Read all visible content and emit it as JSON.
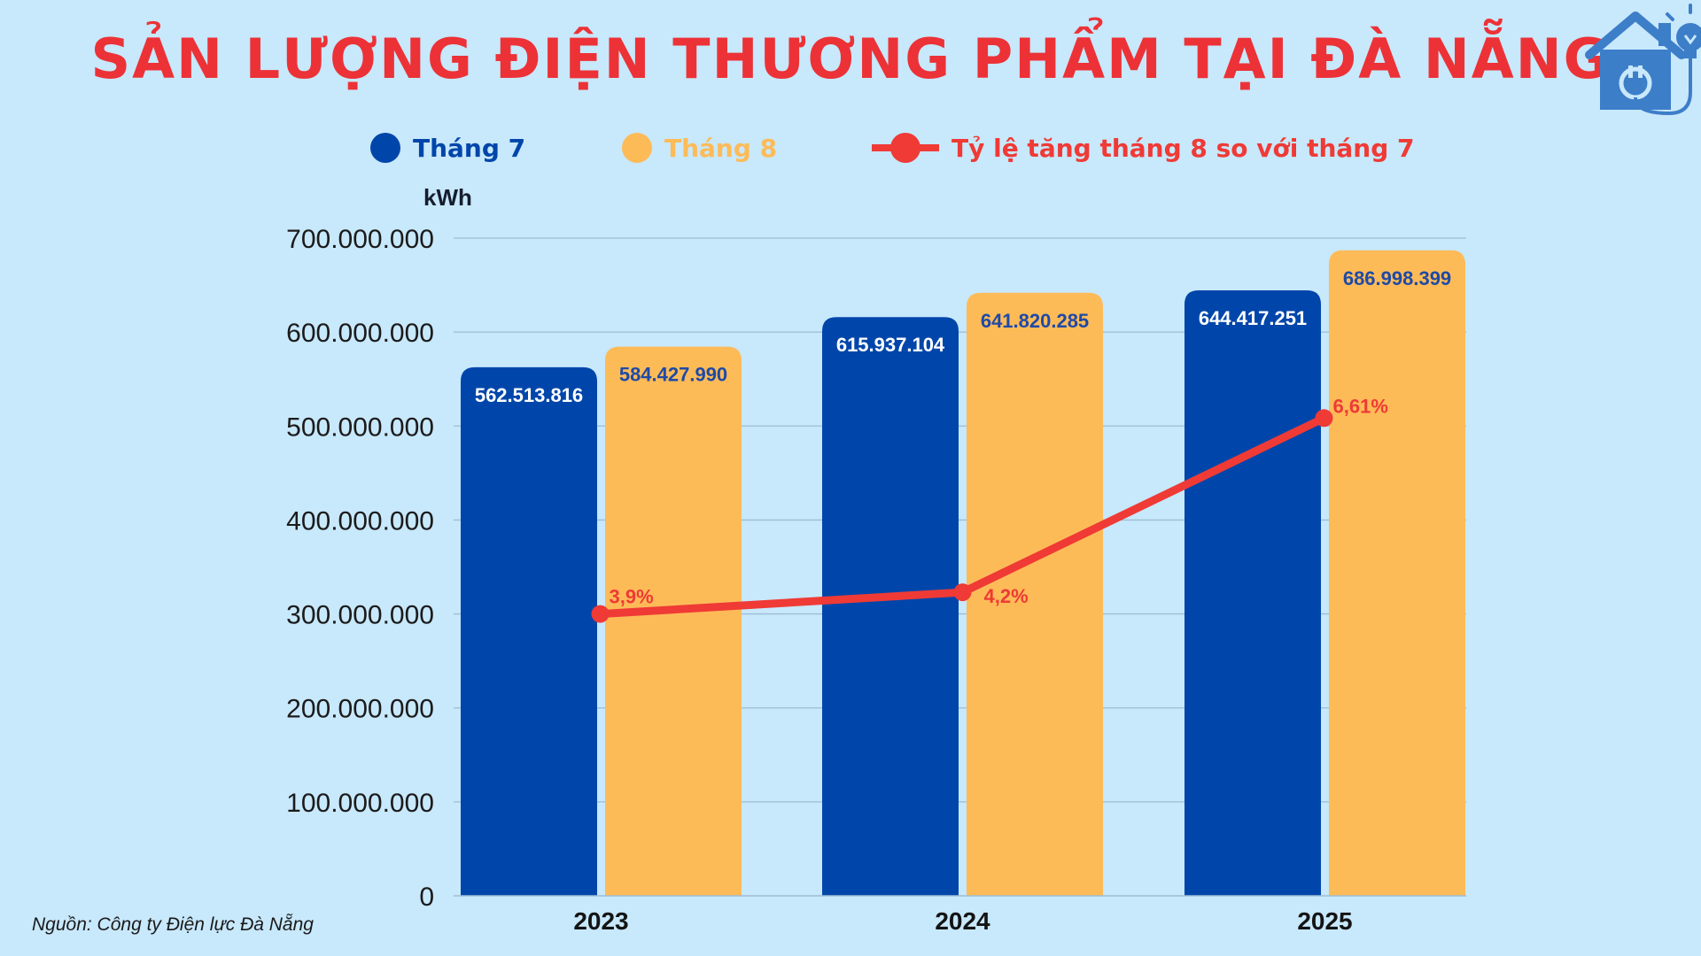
{
  "title": "SẢN LƯỢNG ĐIỆN THƯƠNG PHẨM TẠI ĐÀ NẴNG",
  "logo_icon": "smart-home-plug-bulb-icon",
  "legend": {
    "jul": "Tháng 7",
    "aug": "Tháng 8",
    "rate": "Tỷ lệ tăng tháng 8 so với tháng 7"
  },
  "unit": "kWh",
  "source": "Nguồn: Công ty Điện lực Đà Nẵng",
  "colors": {
    "jul": "#0046aa",
    "aug": "#fdbb58",
    "rate": "#ef3a36",
    "title": "#ec3237",
    "background": "#c8e8fb"
  },
  "chart_data": {
    "type": "bar",
    "categories": [
      "2023",
      "2024",
      "2025"
    ],
    "series": [
      {
        "name": "Tháng 7",
        "values": [
          562513816,
          615937104,
          644417251
        ],
        "labels": [
          "562.513.816",
          "615.937.104",
          "644.417.251"
        ]
      },
      {
        "name": "Tháng 8",
        "values": [
          584427990,
          641820285,
          686998399
        ],
        "labels": [
          "584.427.990",
          "641.820.285",
          "686.998.399"
        ]
      }
    ],
    "line_series": {
      "name": "Tỷ lệ tăng tháng 8 so với tháng 7",
      "values": [
        3.9,
        4.2,
        6.61
      ],
      "labels": [
        "3,9%",
        "4,2%",
        "6,61%"
      ]
    },
    "ylabel": "kWh",
    "ylim": [
      0,
      700000000
    ],
    "yticks": [
      0,
      100000000,
      200000000,
      300000000,
      400000000,
      500000000,
      600000000,
      700000000
    ],
    "ytick_labels": [
      "0",
      "100.000.000",
      "200.000.000",
      "300.000.000",
      "400.000.000",
      "500.000.000",
      "600.000.000",
      "700.000.000"
    ],
    "grid": true,
    "legend_position": "top"
  }
}
